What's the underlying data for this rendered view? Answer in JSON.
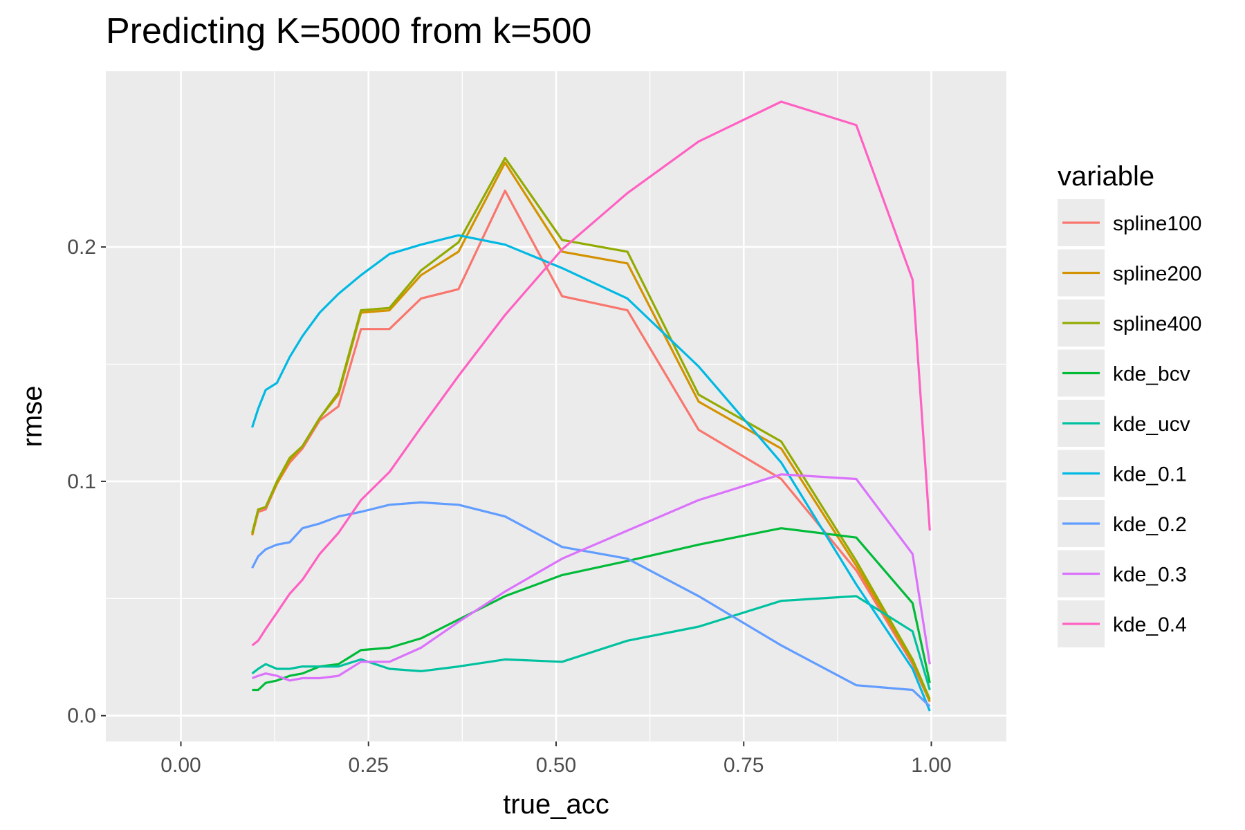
{
  "chart_data": {
    "type": "line",
    "title": "Predicting K=5000 from k=500",
    "xlabel": "true_acc",
    "ylabel": "rmse",
    "xlim": [
      -0.1,
      1.1
    ],
    "ylim": [
      -0.011,
      0.275
    ],
    "x_ticks": [
      0.0,
      0.25,
      0.5,
      0.75,
      1.0
    ],
    "x_tick_labels": [
      "0.00",
      "0.25",
      "0.50",
      "0.75",
      "1.00"
    ],
    "y_ticks": [
      0.0,
      0.1,
      0.2
    ],
    "y_tick_labels": [
      "0.0",
      "0.1",
      "0.2"
    ],
    "grid": true,
    "legend": {
      "title": "variable",
      "position": "right"
    },
    "x": [
      0.095,
      0.103,
      0.113,
      0.128,
      0.145,
      0.162,
      0.185,
      0.21,
      0.24,
      0.278,
      0.32,
      0.37,
      0.432,
      0.508,
      0.595,
      0.69,
      0.8,
      0.9,
      0.975,
      0.998
    ],
    "series": [
      {
        "name": "spline100",
        "color": "#F8766D",
        "values": [
          0.077,
          0.087,
          0.088,
          0.099,
          0.108,
          0.114,
          0.126,
          0.132,
          0.165,
          0.165,
          0.178,
          0.182,
          0.224,
          0.179,
          0.173,
          0.122,
          0.101,
          0.062,
          0.022,
          0.006
        ]
      },
      {
        "name": "spline200",
        "color": "#D39200",
        "values": [
          0.077,
          0.088,
          0.089,
          0.099,
          0.109,
          0.115,
          0.127,
          0.137,
          0.172,
          0.173,
          0.188,
          0.198,
          0.236,
          0.198,
          0.193,
          0.134,
          0.114,
          0.064,
          0.023,
          0.006
        ]
      },
      {
        "name": "spline400",
        "color": "#93AA00",
        "values": [
          0.078,
          0.088,
          0.089,
          0.1,
          0.11,
          0.115,
          0.127,
          0.138,
          0.173,
          0.174,
          0.19,
          0.202,
          0.238,
          0.203,
          0.198,
          0.137,
          0.117,
          0.066,
          0.024,
          0.007
        ]
      },
      {
        "name": "kde_bcv",
        "color": "#00BA38",
        "values": [
          0.011,
          0.011,
          0.014,
          0.015,
          0.017,
          0.018,
          0.021,
          0.022,
          0.028,
          0.029,
          0.033,
          0.041,
          0.051,
          0.06,
          0.066,
          0.073,
          0.08,
          0.076,
          0.048,
          0.014
        ]
      },
      {
        "name": "kde_ucv",
        "color": "#00C19F",
        "values": [
          0.018,
          0.02,
          0.022,
          0.02,
          0.02,
          0.021,
          0.021,
          0.021,
          0.024,
          0.02,
          0.019,
          0.021,
          0.024,
          0.023,
          0.032,
          0.038,
          0.049,
          0.051,
          0.036,
          0.011
        ]
      },
      {
        "name": "kde_0.1",
        "color": "#00B9E3",
        "values": [
          0.123,
          0.131,
          0.139,
          0.142,
          0.153,
          0.162,
          0.172,
          0.18,
          0.188,
          0.197,
          0.201,
          0.205,
          0.201,
          0.191,
          0.178,
          0.149,
          0.108,
          0.056,
          0.02,
          0.002
        ]
      },
      {
        "name": "kde_0.2",
        "color": "#619CFF",
        "values": [
          0.063,
          0.068,
          0.071,
          0.073,
          0.074,
          0.08,
          0.082,
          0.085,
          0.087,
          0.09,
          0.091,
          0.09,
          0.085,
          0.072,
          0.067,
          0.051,
          0.03,
          0.013,
          0.011,
          0.004
        ]
      },
      {
        "name": "kde_0.3",
        "color": "#DB72FB",
        "values": [
          0.016,
          0.017,
          0.018,
          0.017,
          0.015,
          0.016,
          0.016,
          0.017,
          0.023,
          0.023,
          0.029,
          0.04,
          0.053,
          0.067,
          0.079,
          0.092,
          0.103,
          0.101,
          0.069,
          0.022
        ]
      },
      {
        "name": "kde_0.4",
        "color": "#FF61C3",
        "values": [
          0.03,
          0.032,
          0.037,
          0.044,
          0.052,
          0.058,
          0.069,
          0.078,
          0.092,
          0.104,
          0.123,
          0.145,
          0.171,
          0.199,
          0.223,
          0.245,
          0.262,
          0.252,
          0.186,
          0.079
        ]
      }
    ]
  }
}
